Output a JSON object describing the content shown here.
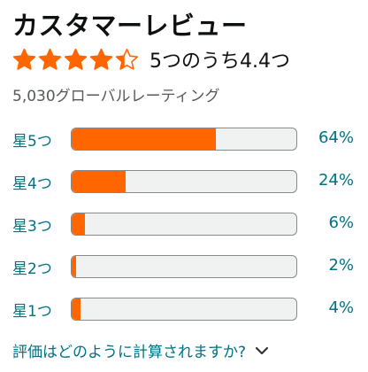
{
  "header": {
    "title": "カスタマーレビュー"
  },
  "summary": {
    "rating_text": "5つのうち4.4つ",
    "rating_value": 4.4,
    "star_color": "#ff6600",
    "global_ratings": "5,030グローバルレーティング"
  },
  "histogram": {
    "bar_color": "#ff6600",
    "rows": [
      {
        "label": "星5つ",
        "percent_text": "64%",
        "fraction": 0.64
      },
      {
        "label": "星4つ",
        "percent_text": "24%",
        "fraction": 0.24
      },
      {
        "label": "星3つ",
        "percent_text": "6%",
        "fraction": 0.06
      },
      {
        "label": "星2つ",
        "percent_text": "2%",
        "fraction": 0.02
      },
      {
        "label": "星1つ",
        "percent_text": "4%",
        "fraction": 0.04
      }
    ]
  },
  "footer": {
    "explain_link": "評価はどのように計算されますか?",
    "chevron_icon": "chevron-down-icon"
  }
}
